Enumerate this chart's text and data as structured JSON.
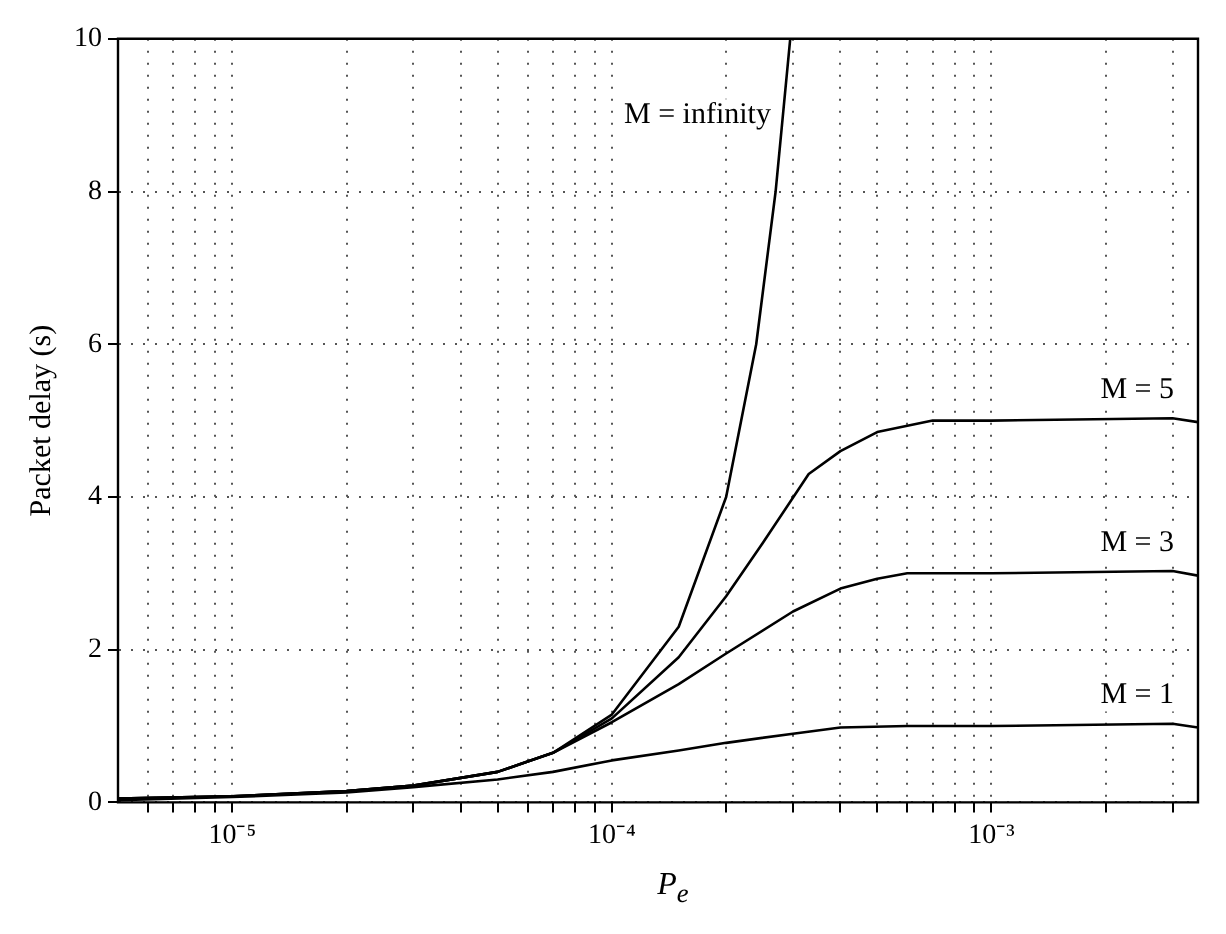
{
  "chart_data": {
    "type": "line",
    "xlabel": "P$_{e}$",
    "ylabel": "Packet delay (s)",
    "log": "x",
    "grid": true,
    "legend": false,
    "marker": "none",
    "line_style": "solid",
    "xlim": [
      5e-06,
      0.0035
    ],
    "ylim": [
      0,
      10
    ],
    "xticks": [
      {
        "value": 6e-06,
        "label": null
      },
      {
        "value": 7e-06,
        "label": null
      },
      {
        "value": 8e-06,
        "label": null
      },
      {
        "value": 9e-06,
        "label": null
      },
      {
        "value": 1e-05,
        "label": "10⁻⁵"
      },
      {
        "value": 2e-05,
        "label": null
      },
      {
        "value": 3e-05,
        "label": null
      },
      {
        "value": 4e-05,
        "label": null
      },
      {
        "value": 5e-05,
        "label": null
      },
      {
        "value": 6e-05,
        "label": null
      },
      {
        "value": 7e-05,
        "label": null
      },
      {
        "value": 8e-05,
        "label": null
      },
      {
        "value": 9e-05,
        "label": null
      },
      {
        "value": 0.0001,
        "label": "10⁻⁴"
      },
      {
        "value": 0.0002,
        "label": null
      },
      {
        "value": 0.0003,
        "label": null
      },
      {
        "value": 0.0004,
        "label": null
      },
      {
        "value": 0.0005,
        "label": null
      },
      {
        "value": 0.0006,
        "label": null
      },
      {
        "value": 0.0007,
        "label": null
      },
      {
        "value": 0.0008,
        "label": null
      },
      {
        "value": 0.0009,
        "label": null
      },
      {
        "value": 0.001,
        "label": "10⁻³"
      },
      {
        "value": 0.002,
        "label": null
      },
      {
        "value": 0.003,
        "label": null
      }
    ],
    "yticks": [
      0,
      2,
      4,
      6,
      8,
      10
    ],
    "series": [
      {
        "name": "M = infinity",
        "color": "#000000",
        "x": [
          5e-06,
          1e-05,
          2e-05,
          3e-05,
          5e-05,
          7e-05,
          0.0001,
          0.00015,
          0.0002,
          0.00024,
          0.00027,
          0.000295
        ],
        "values": [
          0.05,
          0.08,
          0.15,
          0.22,
          0.4,
          0.65,
          1.15,
          2.3,
          4.0,
          6.0,
          8.0,
          10
        ]
      },
      {
        "name": "M = 5",
        "color": "#000000",
        "x": [
          5e-06,
          1e-05,
          2e-05,
          3e-05,
          5e-05,
          7e-05,
          0.0001,
          0.00015,
          0.0002,
          0.00025,
          0.00033,
          0.0004,
          0.0005,
          0.0007,
          0.001,
          0.003,
          0.0035
        ],
        "values": [
          0.05,
          0.08,
          0.15,
          0.22,
          0.4,
          0.65,
          1.1,
          1.9,
          2.7,
          3.4,
          4.3,
          4.6,
          4.85,
          5.0,
          5.0,
          5.03,
          4.98
        ]
      },
      {
        "name": "M = 3",
        "color": "#000000",
        "x": [
          5e-06,
          1e-05,
          2e-05,
          3e-05,
          5e-05,
          7e-05,
          0.0001,
          0.00015,
          0.0002,
          0.0003,
          0.0004,
          0.0005,
          0.0006,
          0.001,
          0.003,
          0.0035
        ],
        "values": [
          0.05,
          0.08,
          0.15,
          0.22,
          0.4,
          0.65,
          1.05,
          1.55,
          1.95,
          2.5,
          2.8,
          2.93,
          3.0,
          3.0,
          3.03,
          2.97
        ]
      },
      {
        "name": "M = 1",
        "color": "#000000",
        "x": [
          5e-06,
          1e-05,
          2e-05,
          3e-05,
          5e-05,
          7e-05,
          0.0001,
          0.00015,
          0.0002,
          0.0003,
          0.0004,
          0.0006,
          0.001,
          0.003,
          0.0035
        ],
        "values": [
          0.03,
          0.07,
          0.13,
          0.2,
          0.3,
          0.4,
          0.55,
          0.68,
          0.78,
          0.9,
          0.98,
          1.0,
          1.0,
          1.03,
          0.98
        ]
      }
    ]
  }
}
